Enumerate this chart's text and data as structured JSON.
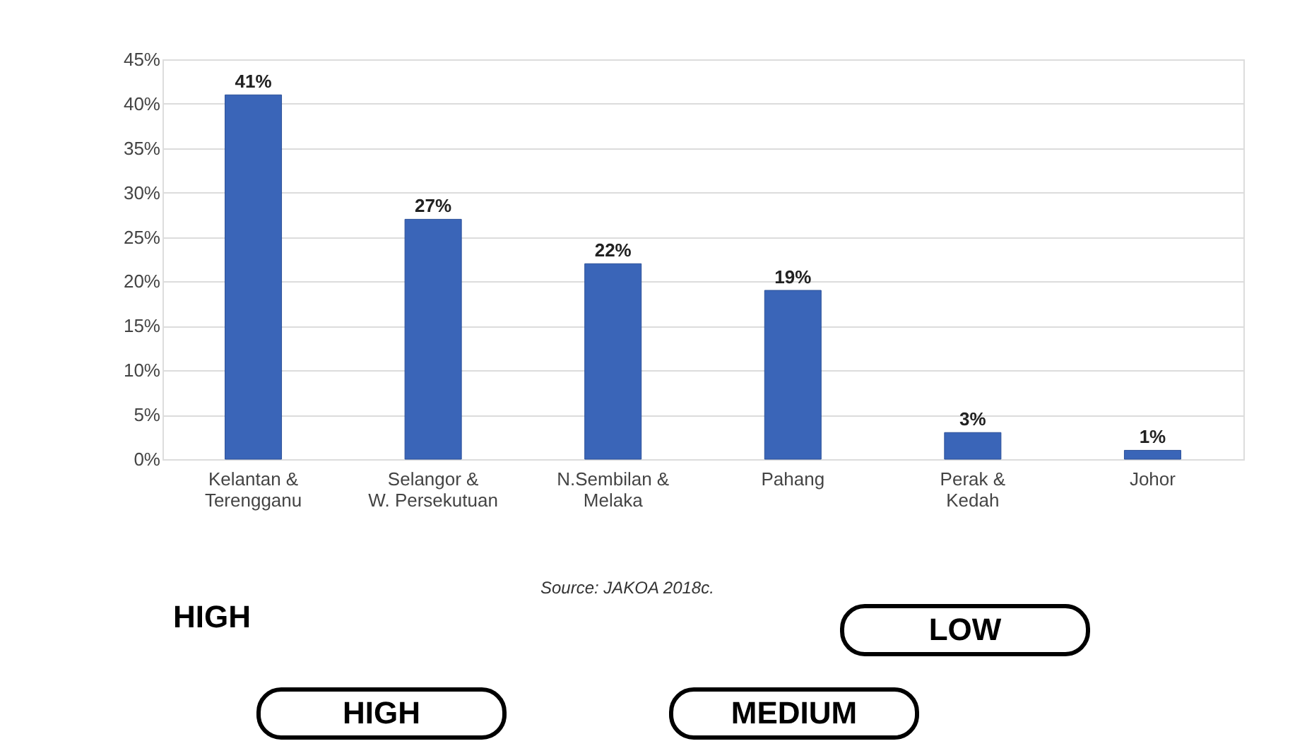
{
  "chart_data": {
    "type": "bar",
    "categories": [
      "Kelantan & Terengganu",
      "Selangor & W. Persekutuan",
      "N.Sembilan & Melaka",
      "Pahang",
      "Perak & Kedah",
      "Johor"
    ],
    "values": [
      41,
      27,
      22,
      19,
      3,
      1
    ],
    "value_labels": [
      "41%",
      "27%",
      "22%",
      "19%",
      "3%",
      "1%"
    ],
    "color": "#3a65b8",
    "ylim": [
      0,
      45
    ],
    "yticks": [
      {
        "value": 0,
        "label": "0%"
      },
      {
        "value": 5,
        "label": "5%"
      },
      {
        "value": 10,
        "label": "10%"
      },
      {
        "value": 15,
        "label": "15%"
      },
      {
        "value": 20,
        "label": "20%"
      },
      {
        "value": 25,
        "label": "25%"
      },
      {
        "value": 30,
        "label": "30%"
      },
      {
        "value": 35,
        "label": "35%"
      },
      {
        "value": 40,
        "label": "40%"
      },
      {
        "value": 45,
        "label": "45%"
      }
    ],
    "grid": "y",
    "annotations": [
      "Source: JAKOA 2018c.",
      "HIGH",
      "HIGH",
      "MEDIUM",
      "LOW"
    ]
  }
}
